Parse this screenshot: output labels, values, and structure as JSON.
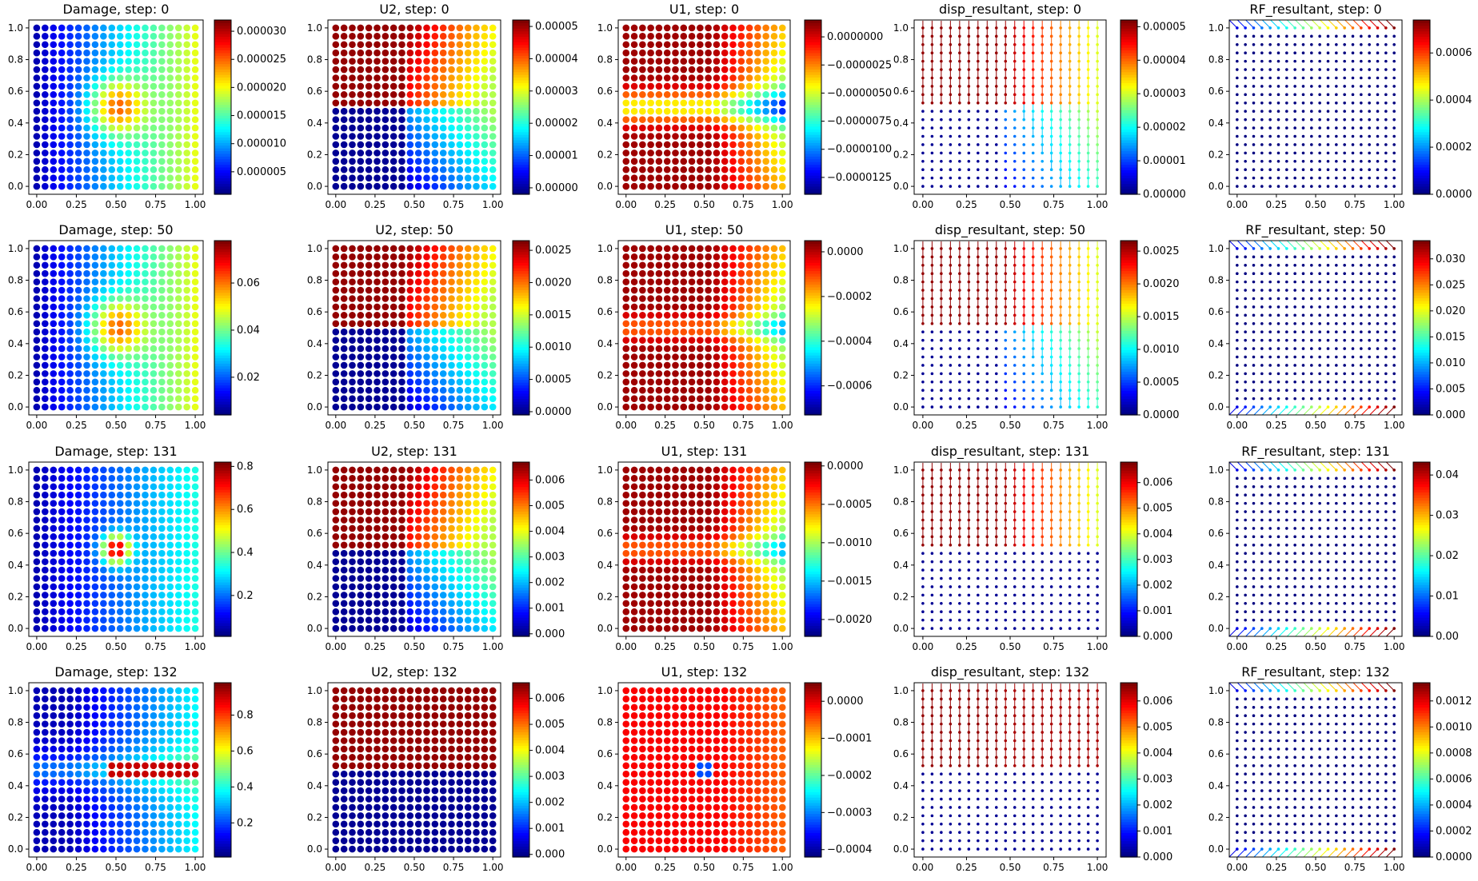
{
  "figure": {
    "rows": 4,
    "cols": 5
  },
  "colors": {
    "colormap": "jet",
    "axis": "#000000",
    "background": "#ffffff"
  },
  "chart_data": [
    {
      "type": "scatter",
      "title": "Damage, step: 0",
      "field": "damage",
      "step": 0,
      "grid": false,
      "xlim": [
        -0.05,
        1.05
      ],
      "ylim": [
        -0.05,
        1.05
      ],
      "xticks": [
        "0.00",
        "0.25",
        "0.50",
        "0.75",
        "1.00"
      ],
      "yticks": [
        "0.0",
        "0.2",
        "0.4",
        "0.6",
        "0.8",
        "1.0"
      ],
      "clim": [
        1e-06,
        3.2e-05
      ],
      "colorbar_ticks": [
        "0.000005",
        "0.000010",
        "0.000015",
        "0.000020",
        "0.000025",
        "0.000030"
      ]
    },
    {
      "type": "scatter",
      "title": "U2, step: 0",
      "field": "u2",
      "step": 0,
      "grid": false,
      "xlim": [
        -0.05,
        1.05
      ],
      "ylim": [
        -0.05,
        1.05
      ],
      "xticks": [
        "0.00",
        "0.25",
        "0.50",
        "0.75",
        "1.00"
      ],
      "yticks": [
        "0.0",
        "0.2",
        "0.4",
        "0.6",
        "0.8",
        "1.0"
      ],
      "clim": [
        -2e-06,
        5.2e-05
      ],
      "colorbar_ticks": [
        "0.00000",
        "0.00001",
        "0.00002",
        "0.00003",
        "0.00004",
        "0.00005"
      ]
    },
    {
      "type": "scatter",
      "title": "U1, step: 0",
      "field": "u1",
      "step": 0,
      "grid": false,
      "xlim": [
        -0.05,
        1.05
      ],
      "ylim": [
        -0.05,
        1.05
      ],
      "xticks": [
        "0.00",
        "0.25",
        "0.50",
        "0.75",
        "1.00"
      ],
      "yticks": [
        "0.0",
        "0.2",
        "0.4",
        "0.6",
        "0.8",
        "1.0"
      ],
      "clim": [
        -1.4e-05,
        1.5e-06
      ],
      "colorbar_ticks": [
        "0.0000000",
        "−0.0000025",
        "−0.0000050",
        "−0.0000075",
        "−0.0000100",
        "−0.0000125"
      ]
    },
    {
      "type": "quiver",
      "title": "disp_resultant, step: 0",
      "field": "disp",
      "step": 0,
      "grid": false,
      "xlim": [
        -0.05,
        1.05
      ],
      "ylim": [
        -0.05,
        1.05
      ],
      "xticks": [
        "0.00",
        "0.25",
        "0.50",
        "0.75",
        "1.00"
      ],
      "yticks": [
        "0.0",
        "0.2",
        "0.4",
        "0.6",
        "0.8",
        "1.0"
      ],
      "clim": [
        0,
        5.2e-05
      ],
      "colorbar_ticks": [
        "0.00000",
        "0.00001",
        "0.00002",
        "0.00003",
        "0.00004",
        "0.00005"
      ]
    },
    {
      "type": "quiver",
      "title": "RF_resultant, step: 0",
      "field": "rf",
      "step": 0,
      "grid": false,
      "xlim": [
        -0.05,
        1.05
      ],
      "ylim": [
        -0.05,
        1.05
      ],
      "xticks": [
        "0.00",
        "0.25",
        "0.50",
        "0.75",
        "1.00"
      ],
      "yticks": [
        "0.0",
        "0.2",
        "0.4",
        "0.6",
        "0.8",
        "1.0"
      ],
      "clim": [
        0,
        0.00074
      ],
      "colorbar_ticks": [
        "0.0000",
        "0.0002",
        "0.0004",
        "0.0006"
      ]
    },
    {
      "type": "scatter",
      "title": "Damage, step: 50",
      "field": "damage",
      "step": 50,
      "grid": false,
      "xlim": [
        -0.05,
        1.05
      ],
      "ylim": [
        -0.05,
        1.05
      ],
      "xticks": [
        "0.00",
        "0.25",
        "0.50",
        "0.75",
        "1.00"
      ],
      "yticks": [
        "0.0",
        "0.2",
        "0.4",
        "0.6",
        "0.8",
        "1.0"
      ],
      "clim": [
        0.004,
        0.078
      ],
      "colorbar_ticks": [
        "0.02",
        "0.04",
        "0.06"
      ]
    },
    {
      "type": "scatter",
      "title": "U2, step: 50",
      "field": "u2",
      "step": 50,
      "grid": false,
      "xlim": [
        -0.05,
        1.05
      ],
      "ylim": [
        -0.05,
        1.05
      ],
      "xticks": [
        "0.00",
        "0.25",
        "0.50",
        "0.75",
        "1.00"
      ],
      "yticks": [
        "0.0",
        "0.2",
        "0.4",
        "0.6",
        "0.8",
        "1.0"
      ],
      "clim": [
        -5e-05,
        0.00265
      ],
      "colorbar_ticks": [
        "0.0000",
        "0.0005",
        "0.0010",
        "0.0015",
        "0.0020",
        "0.0025"
      ]
    },
    {
      "type": "scatter",
      "title": "U1, step: 50",
      "field": "u1",
      "step": 50,
      "grid": false,
      "xlim": [
        -0.05,
        1.05
      ],
      "ylim": [
        -0.05,
        1.05
      ],
      "xticks": [
        "0.00",
        "0.25",
        "0.50",
        "0.75",
        "1.00"
      ],
      "yticks": [
        "0.0",
        "0.2",
        "0.4",
        "0.6",
        "0.8",
        "1.0"
      ],
      "clim": [
        -0.00073,
        5e-05
      ],
      "colorbar_ticks": [
        "0.0000",
        "−0.0002",
        "−0.0004",
        "−0.0006"
      ]
    },
    {
      "type": "quiver",
      "title": "disp_resultant, step: 50",
      "field": "disp",
      "step": 50,
      "grid": false,
      "xlim": [
        -0.05,
        1.05
      ],
      "ylim": [
        -0.05,
        1.05
      ],
      "xticks": [
        "0.00",
        "0.25",
        "0.50",
        "0.75",
        "1.00"
      ],
      "yticks": [
        "0.0",
        "0.2",
        "0.4",
        "0.6",
        "0.8",
        "1.0"
      ],
      "clim": [
        0,
        0.00266
      ],
      "colorbar_ticks": [
        "0.0000",
        "0.0005",
        "0.0010",
        "0.0015",
        "0.0020",
        "0.0025"
      ]
    },
    {
      "type": "quiver",
      "title": "RF_resultant, step: 50",
      "field": "rf",
      "step": 50,
      "grid": false,
      "xlim": [
        -0.05,
        1.05
      ],
      "ylim": [
        -0.05,
        1.05
      ],
      "xticks": [
        "0.00",
        "0.25",
        "0.50",
        "0.75",
        "1.00"
      ],
      "yticks": [
        "0.0",
        "0.2",
        "0.4",
        "0.6",
        "0.8",
        "1.0"
      ],
      "clim": [
        0,
        0.0335
      ],
      "colorbar_ticks": [
        "0.000",
        "0.005",
        "0.010",
        "0.015",
        "0.020",
        "0.025",
        "0.030"
      ]
    },
    {
      "type": "scatter",
      "title": "Damage, step: 131",
      "field": "damage",
      "step": 131,
      "grid": false,
      "xlim": [
        -0.05,
        1.05
      ],
      "ylim": [
        -0.05,
        1.05
      ],
      "xticks": [
        "0.00",
        "0.25",
        "0.50",
        "0.75",
        "1.00"
      ],
      "yticks": [
        "0.0",
        "0.2",
        "0.4",
        "0.6",
        "0.8",
        "1.0"
      ],
      "clim": [
        0.01,
        0.82
      ],
      "colorbar_ticks": [
        "0.2",
        "0.4",
        "0.6",
        "0.8"
      ]
    },
    {
      "type": "scatter",
      "title": "U2, step: 131",
      "field": "u2",
      "step": 131,
      "grid": false,
      "xlim": [
        -0.05,
        1.05
      ],
      "ylim": [
        -0.05,
        1.05
      ],
      "xticks": [
        "0.00",
        "0.25",
        "0.50",
        "0.75",
        "1.00"
      ],
      "yticks": [
        "0.0",
        "0.2",
        "0.4",
        "0.6",
        "0.8",
        "1.0"
      ],
      "clim": [
        -0.0001,
        0.0067
      ],
      "colorbar_ticks": [
        "0.000",
        "0.001",
        "0.002",
        "0.003",
        "0.004",
        "0.005",
        "0.006"
      ]
    },
    {
      "type": "scatter",
      "title": "U1, step: 131",
      "field": "u1",
      "step": 131,
      "grid": false,
      "xlim": [
        -0.05,
        1.05
      ],
      "ylim": [
        -0.05,
        1.05
      ],
      "xticks": [
        "0.00",
        "0.25",
        "0.50",
        "0.75",
        "1.00"
      ],
      "yticks": [
        "0.0",
        "0.2",
        "0.4",
        "0.6",
        "0.8",
        "1.0"
      ],
      "clim": [
        -0.00222,
        5e-05
      ],
      "colorbar_ticks": [
        "0.0000",
        "−0.0005",
        "−0.0010",
        "−0.0015",
        "−0.0020"
      ]
    },
    {
      "type": "quiver",
      "title": "disp_resultant, step: 131",
      "field": "disp",
      "step": 131,
      "grid": false,
      "xlim": [
        -0.05,
        1.05
      ],
      "ylim": [
        -0.05,
        1.05
      ],
      "xticks": [
        "0.00",
        "0.25",
        "0.50",
        "0.75",
        "1.00"
      ],
      "yticks": [
        "0.0",
        "0.2",
        "0.4",
        "0.6",
        "0.8",
        "1.0"
      ],
      "clim": [
        0,
        0.0068
      ],
      "colorbar_ticks": [
        "0.000",
        "0.001",
        "0.002",
        "0.003",
        "0.004",
        "0.005",
        "0.006"
      ]
    },
    {
      "type": "quiver",
      "title": "RF_resultant, step: 131",
      "field": "rf",
      "step": 131,
      "grid": false,
      "xlim": [
        -0.05,
        1.05
      ],
      "ylim": [
        -0.05,
        1.05
      ],
      "xticks": [
        "0.00",
        "0.25",
        "0.50",
        "0.75",
        "1.00"
      ],
      "yticks": [
        "0.0",
        "0.2",
        "0.4",
        "0.6",
        "0.8",
        "1.0"
      ],
      "clim": [
        0,
        0.0432
      ],
      "colorbar_ticks": [
        "0.00",
        "0.01",
        "0.02",
        "0.03",
        "0.04"
      ]
    },
    {
      "type": "scatter",
      "title": "Damage, step: 132",
      "field": "damage",
      "step": 132,
      "grid": false,
      "xlim": [
        -0.05,
        1.05
      ],
      "ylim": [
        -0.05,
        1.05
      ],
      "xticks": [
        "0.00",
        "0.25",
        "0.50",
        "0.75",
        "1.00"
      ],
      "yticks": [
        "0.0",
        "0.2",
        "0.4",
        "0.6",
        "0.8",
        "1.0"
      ],
      "clim": [
        0.01,
        0.98
      ],
      "colorbar_ticks": [
        "0.2",
        "0.4",
        "0.6",
        "0.8"
      ]
    },
    {
      "type": "scatter",
      "title": "U2, step: 132",
      "field": "u2",
      "step": 132,
      "grid": false,
      "xlim": [
        -0.05,
        1.05
      ],
      "ylim": [
        -0.05,
        1.05
      ],
      "xticks": [
        "0.00",
        "0.25",
        "0.50",
        "0.75",
        "1.00"
      ],
      "yticks": [
        "0.0",
        "0.2",
        "0.4",
        "0.6",
        "0.8",
        "1.0"
      ],
      "clim": [
        -0.0001,
        0.0066
      ],
      "colorbar_ticks": [
        "0.000",
        "0.001",
        "0.002",
        "0.003",
        "0.004",
        "0.005",
        "0.006"
      ]
    },
    {
      "type": "scatter",
      "title": "U1, step: 132",
      "field": "u1",
      "step": 132,
      "grid": false,
      "xlim": [
        -0.05,
        1.05
      ],
      "ylim": [
        -0.05,
        1.05
      ],
      "xticks": [
        "0.00",
        "0.25",
        "0.50",
        "0.75",
        "1.00"
      ],
      "yticks": [
        "0.0",
        "0.2",
        "0.4",
        "0.6",
        "0.8",
        "1.0"
      ],
      "clim": [
        -0.00042,
        5e-05
      ],
      "colorbar_ticks": [
        "0.0000",
        "−0.0001",
        "−0.0002",
        "−0.0003",
        "−0.0004"
      ]
    },
    {
      "type": "quiver",
      "title": "disp_resultant, step: 132",
      "field": "disp",
      "step": 132,
      "grid": false,
      "xlim": [
        -0.05,
        1.05
      ],
      "ylim": [
        -0.05,
        1.05
      ],
      "xticks": [
        "0.00",
        "0.25",
        "0.50",
        "0.75",
        "1.00"
      ],
      "yticks": [
        "0.0",
        "0.2",
        "0.4",
        "0.6",
        "0.8",
        "1.0"
      ],
      "clim": [
        0,
        0.0067
      ],
      "colorbar_ticks": [
        "0.000",
        "0.001",
        "0.002",
        "0.003",
        "0.004",
        "0.005",
        "0.006"
      ]
    },
    {
      "type": "quiver",
      "title": "RF_resultant, step: 132",
      "field": "rf",
      "step": 132,
      "grid": false,
      "xlim": [
        -0.05,
        1.05
      ],
      "ylim": [
        -0.05,
        1.05
      ],
      "xticks": [
        "0.00",
        "0.25",
        "0.50",
        "0.75",
        "1.00"
      ],
      "yticks": [
        "0.0",
        "0.2",
        "0.4",
        "0.6",
        "0.8",
        "1.0"
      ],
      "clim": [
        0,
        0.00134
      ],
      "colorbar_ticks": [
        "0.0000",
        "0.0002",
        "0.0004",
        "0.0006",
        "0.0008",
        "0.0010",
        "0.0012"
      ]
    }
  ]
}
